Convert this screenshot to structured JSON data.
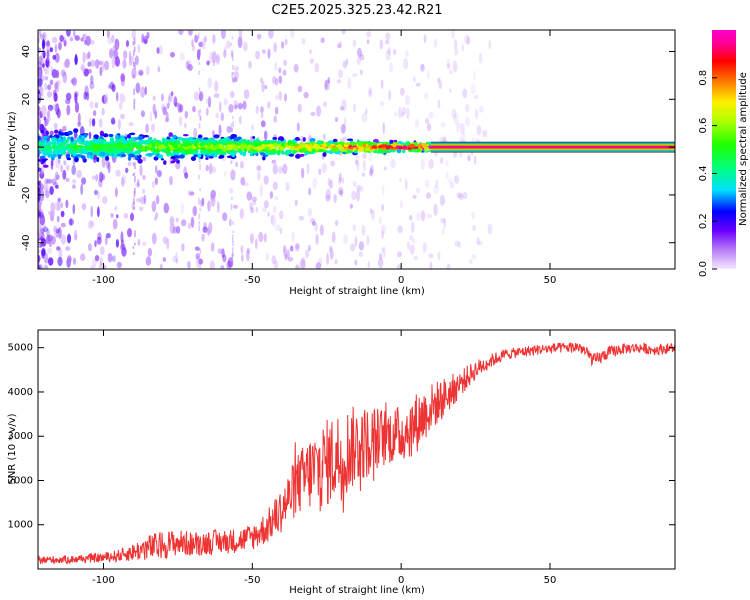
{
  "title": "C2E5.2025.325.23.42.R21",
  "chart_data": [
    {
      "type": "heatmap",
      "xlabel": "Height of straight line (km)",
      "ylabel": "Frequency (Hz)",
      "xlim": [
        -122,
        92
      ],
      "ylim": [
        -51,
        49
      ],
      "x_ticks": [
        -100,
        -50,
        0,
        50
      ],
      "y_ticks": [
        -40,
        -20,
        0,
        20,
        40
      ],
      "colorbar": {
        "label": "Normalized spectral amplitude",
        "range": [
          0,
          1
        ],
        "ticks": [
          0.0,
          0.2,
          0.4,
          0.6,
          0.8
        ],
        "tick_labels": [
          "0.0",
          "0.2",
          "0.4",
          "0.6",
          "0.8"
        ]
      },
      "description_points": {
        "dense_band_x": [
          -122,
          10
        ],
        "clean_line_x": [
          10,
          92
        ],
        "line_frequency_hz": 0,
        "noise_extent_hz": [
          -51,
          49
        ]
      }
    },
    {
      "type": "line",
      "xlabel": "Height of straight line (km)",
      "ylabel": "SNR (10 * v/v)",
      "xlim": [
        -122,
        92
      ],
      "ylim": [
        0,
        5400
      ],
      "x_ticks": [
        -100,
        -50,
        0,
        50
      ],
      "y_ticks": [
        1000,
        2000,
        3000,
        4000,
        5000
      ],
      "color": "#ee3333",
      "series": [
        {
          "name": "SNR",
          "x": [
            -122,
            -110,
            -100,
            -95,
            -90,
            -85,
            -80,
            -75,
            -70,
            -65,
            -60,
            -55,
            -50,
            -45,
            -40,
            -35,
            -30,
            -25,
            -20,
            -15,
            -10,
            -5,
            0,
            5,
            10,
            15,
            20,
            25,
            30,
            35,
            40,
            45,
            50,
            55,
            60,
            65,
            70,
            75,
            80,
            85,
            92
          ],
          "y": [
            200,
            220,
            260,
            300,
            380,
            480,
            540,
            600,
            560,
            600,
            620,
            640,
            720,
            950,
            1350,
            1900,
            2200,
            2400,
            2600,
            2800,
            2900,
            3000,
            3050,
            3300,
            3650,
            3900,
            4200,
            4500,
            4700,
            4850,
            4900,
            4950,
            4980,
            5000,
            5020,
            4700,
            4900,
            4980,
            5000,
            4950,
            5000
          ],
          "amplitude": [
            90,
            90,
            110,
            140,
            200,
            300,
            320,
            300,
            280,
            280,
            280,
            280,
            300,
            380,
            520,
            700,
            900,
            1000,
            1050,
            900,
            800,
            650,
            650,
            700,
            550,
            450,
            300,
            220,
            160,
            120,
            120,
            120,
            120,
            120,
            140,
            160,
            140,
            120,
            120,
            120,
            120
          ]
        }
      ]
    }
  ]
}
